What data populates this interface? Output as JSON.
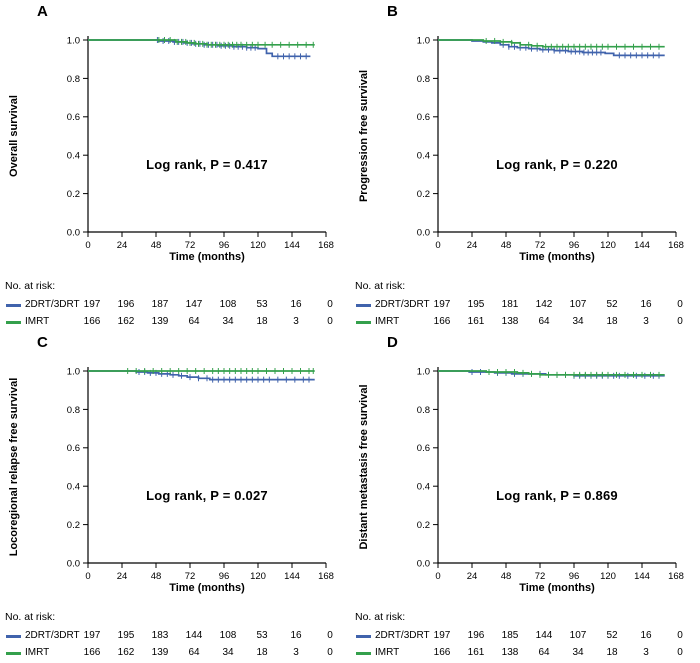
{
  "labels": {
    "no_at_risk": "No. at risk:"
  },
  "axes": {
    "x_ticks": [
      0,
      24,
      48,
      72,
      96,
      120,
      144,
      168
    ],
    "x_max": 168,
    "y_ticks": [
      "0.0",
      "0.2",
      "0.4",
      "0.6",
      "0.8",
      "1.0"
    ],
    "y_min": 0.0,
    "y_max": 1.0
  },
  "colors": {
    "group_2drt3drt": "#4063ac",
    "group_imrt": "#34a04c",
    "axis": "#000000",
    "text": "#000000",
    "background": "#ffffff"
  },
  "chart_data": [
    {
      "panel": "A",
      "type": "line",
      "subtype": "kaplan-meier-step",
      "ylabel": "Overall survival",
      "xlabel": "Time (months)",
      "annotation": "Log rank, P = 0.417",
      "xlim": [
        0,
        168
      ],
      "ylim": [
        0,
        1.05
      ],
      "legend_position": "risk-table",
      "series": [
        {
          "name": "2DRT/3DRT",
          "color": "#4063ac",
          "steps": [
            [
              0,
              1
            ],
            [
              46,
              1
            ],
            [
              50,
              0.995
            ],
            [
              60,
              0.99
            ],
            [
              68,
              0.985
            ],
            [
              74,
              0.98
            ],
            [
              82,
              0.975
            ],
            [
              92,
              0.97
            ],
            [
              102,
              0.965
            ],
            [
              112,
              0.96
            ],
            [
              120,
              0.955
            ],
            [
              126,
              0.93
            ],
            [
              130,
              0.915
            ],
            [
              157,
              0.915
            ]
          ],
          "censors": [
            49,
            53,
            57,
            61,
            64,
            67,
            70,
            73,
            76,
            79,
            82,
            85,
            88,
            91,
            94,
            97,
            100,
            103,
            106,
            109,
            112,
            115,
            118,
            134,
            138,
            142,
            146,
            150,
            154
          ],
          "at_risk": [
            197,
            196,
            187,
            147,
            108,
            53,
            16,
            0
          ]
        },
        {
          "name": "IMRT",
          "color": "#34a04c",
          "steps": [
            [
              0,
              1
            ],
            [
              58,
              1
            ],
            [
              62,
              0.99
            ],
            [
              70,
              0.985
            ],
            [
              76,
              0.98
            ],
            [
              84,
              0.975
            ],
            [
              160,
              0.975
            ]
          ],
          "censors": [
            50,
            54,
            58,
            63,
            66,
            69,
            72,
            75,
            78,
            81,
            84,
            87,
            90,
            93,
            96,
            99,
            102,
            105,
            108,
            112,
            116,
            120,
            125,
            130,
            136,
            142,
            148,
            154,
            159
          ],
          "at_risk": [
            166,
            162,
            139,
            64,
            34,
            18,
            3,
            0
          ]
        }
      ]
    },
    {
      "panel": "B",
      "type": "line",
      "subtype": "kaplan-meier-step",
      "ylabel": "Progression free survival",
      "xlabel": "Time (months)",
      "annotation": "Log rank, P = 0.220",
      "xlim": [
        0,
        168
      ],
      "ylim": [
        0,
        1.05
      ],
      "legend_position": "risk-table",
      "series": [
        {
          "name": "2DRT/3DRT",
          "color": "#4063ac",
          "steps": [
            [
              0,
              1
            ],
            [
              20,
              1
            ],
            [
              24,
              0.995
            ],
            [
              32,
              0.99
            ],
            [
              38,
              0.985
            ],
            [
              44,
              0.975
            ],
            [
              50,
              0.965
            ],
            [
              56,
              0.96
            ],
            [
              64,
              0.955
            ],
            [
              72,
              0.95
            ],
            [
              82,
              0.945
            ],
            [
              92,
              0.94
            ],
            [
              102,
              0.935
            ],
            [
              118,
              0.93
            ],
            [
              124,
              0.92
            ],
            [
              160,
              0.92
            ]
          ],
          "censors": [
            46,
            50,
            54,
            58,
            62,
            66,
            70,
            74,
            78,
            82,
            86,
            90,
            94,
            97,
            100,
            103,
            106,
            109,
            112,
            115,
            128,
            132,
            136,
            140,
            144,
            148,
            152,
            156
          ],
          "at_risk": [
            197,
            195,
            181,
            142,
            107,
            52,
            16,
            0
          ]
        },
        {
          "name": "IMRT",
          "color": "#34a04c",
          "steps": [
            [
              0,
              1
            ],
            [
              28,
              1
            ],
            [
              32,
              0.995
            ],
            [
              44,
              0.99
            ],
            [
              52,
              0.985
            ],
            [
              58,
              0.975
            ],
            [
              66,
              0.97
            ],
            [
              74,
              0.965
            ],
            [
              160,
              0.965
            ]
          ],
          "censors": [
            34,
            40,
            46,
            52,
            58,
            64,
            70,
            76,
            80,
            84,
            88,
            92,
            96,
            100,
            104,
            108,
            112,
            116,
            120,
            126,
            132,
            138,
            144,
            150,
            156
          ],
          "at_risk": [
            166,
            161,
            138,
            64,
            34,
            18,
            3,
            0
          ]
        }
      ]
    },
    {
      "panel": "C",
      "type": "line",
      "subtype": "kaplan-meier-step",
      "ylabel": "Locoregional relapse free survival",
      "xlabel": "Time (months)",
      "annotation": "Log rank, P = 0.027",
      "xlim": [
        0,
        168
      ],
      "ylim": [
        0,
        1.05
      ],
      "legend_position": "risk-table",
      "series": [
        {
          "name": "2DRT/3DRT",
          "color": "#4063ac",
          "steps": [
            [
              0,
              1
            ],
            [
              30,
              1
            ],
            [
              34,
              0.995
            ],
            [
              42,
              0.99
            ],
            [
              50,
              0.985
            ],
            [
              58,
              0.98
            ],
            [
              64,
              0.975
            ],
            [
              70,
              0.968
            ],
            [
              78,
              0.962
            ],
            [
              86,
              0.955
            ],
            [
              160,
              0.955
            ]
          ],
          "censors": [
            36,
            40,
            44,
            48,
            52,
            56,
            60,
            66,
            72,
            78,
            84,
            88,
            92,
            96,
            100,
            104,
            108,
            112,
            116,
            120,
            124,
            128,
            134,
            140,
            146,
            152,
            156
          ],
          "at_risk": [
            197,
            195,
            183,
            144,
            108,
            53,
            16,
            0
          ]
        },
        {
          "name": "IMRT",
          "color": "#34a04c",
          "steps": [
            [
              0,
              1
            ],
            [
              160,
              1
            ]
          ],
          "censors": [
            28,
            34,
            40,
            46,
            52,
            58,
            64,
            70,
            76,
            82,
            88,
            92,
            96,
            100,
            104,
            108,
            112,
            116,
            120,
            126,
            132,
            138,
            144,
            150,
            156,
            159
          ],
          "at_risk": [
            166,
            162,
            139,
            64,
            34,
            18,
            3,
            0
          ]
        }
      ]
    },
    {
      "panel": "D",
      "type": "line",
      "subtype": "kaplan-meier-step",
      "ylabel": "Distant metastasis free survival",
      "xlabel": "Time (months)",
      "annotation": "Log rank, P = 0.869",
      "xlim": [
        0,
        168
      ],
      "ylim": [
        0,
        1.05
      ],
      "legend_position": "risk-table",
      "series": [
        {
          "name": "2DRT/3DRT",
          "color": "#4063ac",
          "steps": [
            [
              0,
              1
            ],
            [
              18,
              1
            ],
            [
              22,
              0.995
            ],
            [
              40,
              0.99
            ],
            [
              52,
              0.985
            ],
            [
              76,
              0.98
            ],
            [
              96,
              0.975
            ],
            [
              160,
              0.975
            ]
          ],
          "censors": [
            24,
            30,
            36,
            42,
            48,
            54,
            60,
            66,
            72,
            78,
            84,
            90,
            96,
            100,
            104,
            108,
            112,
            116,
            120,
            124,
            128,
            134,
            140,
            146,
            152,
            156
          ],
          "at_risk": [
            197,
            196,
            185,
            144,
            107,
            52,
            16,
            0
          ]
        },
        {
          "name": "IMRT",
          "color": "#34a04c",
          "steps": [
            [
              0,
              1
            ],
            [
              30,
              1
            ],
            [
              34,
              0.995
            ],
            [
              56,
              0.99
            ],
            [
              64,
              0.985
            ],
            [
              72,
              0.98
            ],
            [
              160,
              0.98
            ]
          ],
          "censors": [
            36,
            42,
            48,
            54,
            60,
            66,
            72,
            78,
            84,
            90,
            96,
            100,
            104,
            108,
            112,
            116,
            120,
            126,
            132,
            138,
            144,
            150,
            156
          ],
          "at_risk": [
            166,
            161,
            138,
            64,
            34,
            18,
            3,
            0
          ]
        }
      ]
    }
  ]
}
